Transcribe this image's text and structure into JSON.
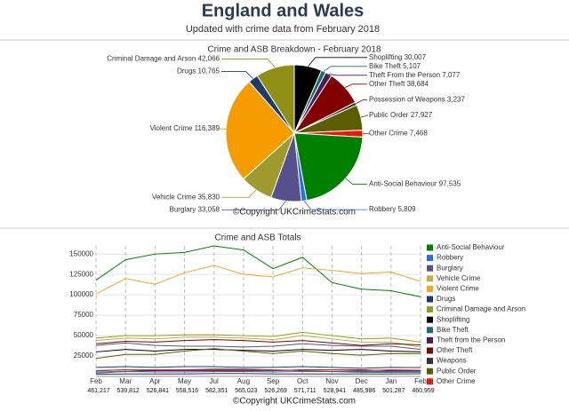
{
  "header": {
    "title": "England and Wales",
    "subtitle": "Updated with crime data from February 2018"
  },
  "chart_data": [
    {
      "type": "pie",
      "title": "Crime and ASB Breakdown - February 2018",
      "credit": "©Copyright UKCrimeStats.com",
      "categories": [
        "Shoplifting",
        "Bike Theft",
        "Theft From the Person",
        "Other Theft",
        "Possession of Weapons",
        "Public Order",
        "Other Crime",
        "Anti-Social Behaviour",
        "Robbery",
        "Burglary",
        "Vehicle Crime",
        "Violent Crime",
        "Drugs",
        "Criminal Damage and Arson"
      ],
      "values": [
        30007,
        5107,
        7077,
        38684,
        3237,
        27927,
        7468,
        97535,
        5809,
        33058,
        35830,
        116389,
        10765,
        42066
      ],
      "value_labels": [
        "30,007",
        "5,107",
        "7,077",
        "38,684",
        "3,237",
        "27,927",
        "7,468",
        "97,535",
        "5,809",
        "33,058",
        "35,830",
        "116,389",
        "10,765",
        "42,066"
      ],
      "colors": [
        "#000000",
        "#1d6b6b",
        "#4b1b5c",
        "#800000",
        "#333333",
        "#5c5c00",
        "#e8170c",
        "#008000",
        "#2a6ee0",
        "#56508c",
        "#9d9a2e",
        "#f59c00",
        "#1f3a6e",
        "#8f8f14"
      ]
    },
    {
      "type": "line",
      "title": "Crime and ASB Totals",
      "credit": "©Copyright UKCrimeStats.com",
      "categories": [
        "Feb",
        "Mar",
        "Apr",
        "May",
        "Jul",
        "Aug",
        "Sep",
        "Oct",
        "Nov",
        "Dec",
        "Jan",
        "Feb"
      ],
      "totals": [
        461217,
        539812,
        526841,
        558516,
        582351,
        565023,
        526269,
        571711,
        528941,
        485986,
        501287,
        460959
      ],
      "totals_labels": [
        "461,217",
        "539,812",
        "526,841",
        "558,516",
        "582,351",
        "565,023",
        "526,269",
        "571,711",
        "528,941",
        "485,986",
        "501,287",
        "460,959"
      ],
      "ylim": [
        0,
        160000
      ],
      "yticks": [
        25000,
        50000,
        75000,
        100000,
        125000,
        150000
      ],
      "grid": true,
      "legend": "right",
      "series": [
        {
          "name": "Anti-Social Behaviour",
          "color": "#008000",
          "values": [
            118000,
            143000,
            150000,
            152000,
            160000,
            155000,
            132000,
            146000,
            115000,
            107000,
            105000,
            97535
          ]
        },
        {
          "name": "Robbery",
          "color": "#2a6ee0",
          "values": [
            5500,
            6000,
            5500,
            5500,
            6000,
            6000,
            5500,
            6000,
            6000,
            6000,
            6000,
            5809
          ]
        },
        {
          "name": "Burglary",
          "color": "#56508c",
          "values": [
            38000,
            41000,
            38000,
            37000,
            37000,
            36000,
            37000,
            40000,
            38000,
            37000,
            37000,
            33058
          ]
        },
        {
          "name": "Vehicle Crime",
          "color": "#b5b540",
          "values": [
            44000,
            47000,
            46000,
            48000,
            48000,
            47000,
            45000,
            50000,
            46000,
            42000,
            42000,
            35830
          ]
        },
        {
          "name": "Violent Crime",
          "color": "#f5a623",
          "values": [
            101000,
            120000,
            113000,
            127000,
            136000,
            125000,
            122000,
            133000,
            130000,
            126000,
            128000,
            116389
          ]
        },
        {
          "name": "Drugs",
          "color": "#1f3a6e",
          "values": [
            11000,
            12000,
            11000,
            12000,
            12000,
            11000,
            11000,
            12000,
            11000,
            10000,
            11000,
            10765
          ]
        },
        {
          "name": "Criminal Damage and Arson",
          "color": "#999922",
          "values": [
            47000,
            50000,
            50000,
            51000,
            51000,
            50000,
            49000,
            54000,
            50000,
            46000,
            47000,
            42066
          ]
        },
        {
          "name": "Shoplifting",
          "color": "#000000",
          "values": [
            30000,
            33000,
            31000,
            33000,
            33000,
            32000,
            31000,
            33000,
            32000,
            33000,
            31000,
            30007
          ]
        },
        {
          "name": "Bike Theft",
          "color": "#1d6b6b",
          "values": [
            4000,
            6000,
            7000,
            8000,
            9000,
            9000,
            8000,
            7000,
            6000,
            5000,
            5000,
            5107
          ]
        },
        {
          "name": "Theft from the Person",
          "color": "#4b1b5c",
          "values": [
            7000,
            8000,
            7000,
            7000,
            7000,
            7000,
            7000,
            8000,
            8000,
            8000,
            7000,
            7077
          ]
        },
        {
          "name": "Other Theft",
          "color": "#800000",
          "values": [
            40000,
            43000,
            42000,
            44000,
            45000,
            44000,
            42000,
            44000,
            41000,
            38000,
            40000,
            38684
          ]
        },
        {
          "name": "Weapons",
          "color": "#333333",
          "values": [
            2500,
            3000,
            3000,
            3000,
            3500,
            3500,
            3000,
            3000,
            3000,
            3000,
            3000,
            3237
          ]
        },
        {
          "name": "Public Order",
          "color": "#5c5c00",
          "values": [
            22000,
            27000,
            27000,
            31000,
            34000,
            31000,
            28000,
            31000,
            28000,
            26000,
            28000,
            27927
          ]
        },
        {
          "name": "Other Crime",
          "color": "#e8170c",
          "values": [
            7000,
            8000,
            8000,
            8000,
            8000,
            8000,
            7000,
            8000,
            8000,
            7000,
            8000,
            7468
          ]
        }
      ]
    }
  ]
}
